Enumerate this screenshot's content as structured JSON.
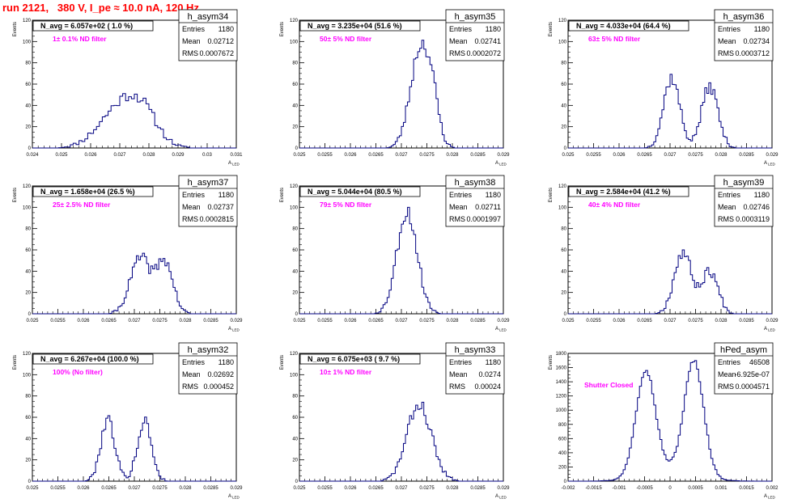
{
  "page": {
    "title": "run 2121,   380 V, I_pe ≈ 10.0 nA, 120 Hz"
  },
  "colors": {
    "histogram": "#000080",
    "annotation": "#ff00ff",
    "title": "#ff0000"
  },
  "chart_data": [
    {
      "type": "histogram",
      "name": "h_asym34",
      "title": "N_avg = 6.057e+02 ( 1.0 %)",
      "annotation": "1± 0.1% ND filter",
      "xlabel": "A",
      "xlabel_sub": "LED",
      "ylabel": "Events",
      "xlim": [
        0.024,
        0.031
      ],
      "ylim": [
        0,
        120
      ],
      "xticks": [
        "0.024",
        "0.025",
        "0.026",
        "0.027",
        "0.028",
        "0.029",
        "0.03",
        "0.031"
      ],
      "yticks": [
        "0",
        "20",
        "40",
        "60",
        "80",
        "100",
        "120"
      ],
      "stats": [
        [
          "Entries",
          "1180"
        ],
        [
          "Mean",
          "0.02712"
        ],
        [
          "RMS",
          "0.0007672"
        ]
      ],
      "peaks": [
        {
          "mu": 0.02695,
          "sigma": 0.0007,
          "amp": 34
        },
        {
          "mu": 0.02775,
          "sigma": 0.00055,
          "amp": 28
        }
      ],
      "bin": 0.0001,
      "seed": 11
    },
    {
      "type": "histogram",
      "name": "h_asym35",
      "title": "N_avg = 3.235e+04 (51.6 %)",
      "annotation": "50± 5% ND filter",
      "xlabel": "A",
      "xlabel_sub": "LED",
      "ylabel": "Events",
      "xlim": [
        0.025,
        0.029
      ],
      "ylim": [
        0,
        120
      ],
      "xticks": [
        "0.025",
        "0.0255",
        "0.026",
        "0.0265",
        "0.027",
        "0.0275",
        "0.028",
        "0.0285",
        "0.029"
      ],
      "yticks": [
        "0",
        "20",
        "40",
        "60",
        "80",
        "100",
        "120"
      ],
      "stats": [
        [
          "Entries",
          "1180"
        ],
        [
          "Mean",
          "0.02741"
        ],
        [
          "RMS",
          "0.0002072"
        ]
      ],
      "peaks": [
        {
          "mu": 0.02738,
          "sigma": 0.0002,
          "amp": 95
        },
        {
          "mu": 0.02762,
          "sigma": 0.00012,
          "amp": 22
        }
      ],
      "bin": 4e-05,
      "seed": 23
    },
    {
      "type": "histogram",
      "name": "h_asym36",
      "title": "N_avg = 4.033e+04 (64.4 %)",
      "annotation": "63± 5% ND filter",
      "xlabel": "A",
      "xlabel_sub": "LED",
      "ylabel": "Events",
      "xlim": [
        0.025,
        0.029
      ],
      "ylim": [
        0,
        120
      ],
      "xticks": [
        "0.025",
        "0.0255",
        "0.026",
        "0.0265",
        "0.027",
        "0.0275",
        "0.028",
        "0.0285",
        "0.029"
      ],
      "yticks": [
        "0",
        "20",
        "40",
        "60",
        "80",
        "100",
        "120"
      ],
      "stats": [
        [
          "Entries",
          "1180"
        ],
        [
          "Mean",
          "0.02734"
        ],
        [
          "RMS",
          "0.0003712"
        ]
      ],
      "peaks": [
        {
          "mu": 0.02703,
          "sigma": 0.00016,
          "amp": 66
        },
        {
          "mu": 0.02778,
          "sigma": 0.00016,
          "amp": 58
        }
      ],
      "bin": 4e-05,
      "seed": 37
    },
    {
      "type": "histogram",
      "name": "h_asym37",
      "title": "N_avg = 1.658e+04 (26.5 %)",
      "annotation": "25± 2.5% ND filter",
      "xlabel": "A",
      "xlabel_sub": "LED",
      "ylabel": "Events",
      "xlim": [
        0.025,
        0.029
      ],
      "ylim": [
        0,
        120
      ],
      "xticks": [
        "0.025",
        "0.0255",
        "0.026",
        "0.0265",
        "0.027",
        "0.0275",
        "0.028",
        "0.0285",
        "0.029"
      ],
      "yticks": [
        "0",
        "20",
        "40",
        "60",
        "80",
        "100",
        "120"
      ],
      "stats": [
        [
          "Entries",
          "1180"
        ],
        [
          "Mean",
          "0.02737"
        ],
        [
          "RMS",
          "0.0002815"
        ]
      ],
      "peaks": [
        {
          "mu": 0.02712,
          "sigma": 0.0002,
          "amp": 52
        },
        {
          "mu": 0.0276,
          "sigma": 0.00016,
          "amp": 48
        }
      ],
      "bin": 4e-05,
      "seed": 41
    },
    {
      "type": "histogram",
      "name": "h_asym38",
      "title": "N_avg = 5.044e+04 (80.5 %)",
      "annotation": "79± 5% ND filter",
      "xlabel": "A",
      "xlabel_sub": "LED",
      "ylabel": "Events",
      "xlim": [
        0.025,
        0.029
      ],
      "ylim": [
        0,
        120
      ],
      "xticks": [
        "0.025",
        "0.0255",
        "0.026",
        "0.0265",
        "0.027",
        "0.0275",
        "0.028",
        "0.0285",
        "0.029"
      ],
      "yticks": [
        "0",
        "20",
        "40",
        "60",
        "80",
        "100",
        "120"
      ],
      "stats": [
        [
          "Entries",
          "1180"
        ],
        [
          "Mean",
          "0.02711"
        ],
        [
          "RMS",
          "0.0001997"
        ]
      ],
      "peaks": [
        {
          "mu": 0.02711,
          "sigma": 0.0002,
          "amp": 96
        }
      ],
      "bin": 4e-05,
      "seed": 53
    },
    {
      "type": "histogram",
      "name": "h_asym39",
      "title": "N_avg = 2.584e+04 (41.2 %)",
      "annotation": "40± 4% ND filter",
      "xlabel": "A",
      "xlabel_sub": "LED",
      "ylabel": "Events",
      "xlim": [
        0.025,
        0.029
      ],
      "ylim": [
        0,
        120
      ],
      "xticks": [
        "0.025",
        "0.0255",
        "0.026",
        "0.0265",
        "0.027",
        "0.0275",
        "0.028",
        "0.0285",
        "0.029"
      ],
      "yticks": [
        "0",
        "20",
        "40",
        "60",
        "80",
        "100",
        "120"
      ],
      "stats": [
        [
          "Entries",
          "1180"
        ],
        [
          "Mean",
          "0.02746"
        ],
        [
          "RMS",
          "0.0003119"
        ]
      ],
      "peaks": [
        {
          "mu": 0.02725,
          "sigma": 0.00017,
          "amp": 58
        },
        {
          "mu": 0.02778,
          "sigma": 0.00016,
          "amp": 40
        }
      ],
      "bin": 4e-05,
      "seed": 67
    },
    {
      "type": "histogram",
      "name": "h_asym32",
      "title": "N_avg = 6.267e+04 (100.0 %)",
      "annotation": "100% (No filter)",
      "xlabel": "A",
      "xlabel_sub": "LED",
      "ylabel": "Events",
      "xlim": [
        0.025,
        0.029
      ],
      "ylim": [
        0,
        120
      ],
      "xticks": [
        "0.025",
        "0.0255",
        "0.026",
        "0.0265",
        "0.027",
        "0.0275",
        "0.028",
        "0.0285",
        "0.029"
      ],
      "yticks": [
        "0",
        "20",
        "40",
        "60",
        "80",
        "100",
        "120"
      ],
      "stats": [
        [
          "Entries",
          "1180"
        ],
        [
          "Mean",
          "0.02692"
        ],
        [
          "RMS",
          "0.000452"
        ]
      ],
      "peaks": [
        {
          "mu": 0.02648,
          "sigma": 0.00014,
          "amp": 58
        },
        {
          "mu": 0.0272,
          "sigma": 0.00014,
          "amp": 56
        }
      ],
      "bin": 4e-05,
      "seed": 79
    },
    {
      "type": "histogram",
      "name": "h_asym33",
      "title": "N_avg = 6.075e+03 ( 9.7 %)",
      "annotation": "10± 1% ND filter",
      "xlabel": "A",
      "xlabel_sub": "LED",
      "ylabel": "Events",
      "xlim": [
        0.025,
        0.029
      ],
      "ylim": [
        0,
        120
      ],
      "xticks": [
        "0.025",
        "0.0255",
        "0.026",
        "0.0265",
        "0.027",
        "0.0275",
        "0.028",
        "0.0285",
        "0.029"
      ],
      "yticks": [
        "0",
        "20",
        "40",
        "60",
        "80",
        "100",
        "120"
      ],
      "stats": [
        [
          "Entries",
          "1180"
        ],
        [
          "Mean",
          "0.0274"
        ],
        [
          "RMS",
          "0.00024"
        ]
      ],
      "peaks": [
        {
          "mu": 0.02735,
          "sigma": 0.00024,
          "amp": 72
        }
      ],
      "bin": 4e-05,
      "seed": 83
    },
    {
      "type": "histogram",
      "name": "hPed_asym",
      "title": "",
      "annotation": "Shutter Closed",
      "xlabel": "A",
      "xlabel_sub": "LED",
      "ylabel": "Events",
      "xlim": [
        -0.002,
        0.002
      ],
      "ylim": [
        0,
        1800
      ],
      "xticks": [
        "-0.002",
        "-0.0015",
        "-0.001",
        "-0.0005",
        "0",
        "0.0005",
        "0.001",
        "0.0015",
        "0.002"
      ],
      "yticks": [
        "0",
        "200",
        "400",
        "600",
        "800",
        "1000",
        "1200",
        "1400",
        "1600",
        "1800"
      ],
      "stats": [
        [
          "Entries",
          "46508"
        ],
        [
          "Mean",
          "-6.925e-07"
        ],
        [
          "RMS",
          "0.0004571"
        ]
      ],
      "peaks": [
        {
          "mu": -0.00048,
          "sigma": 0.00019,
          "amp": 1480
        },
        {
          "mu": 0.00047,
          "sigma": 0.00019,
          "amp": 1600
        },
        {
          "mu": 0.0,
          "sigma": 0.0005,
          "amp": 150
        }
      ],
      "bin": 4e-05,
      "seed": 97
    }
  ]
}
